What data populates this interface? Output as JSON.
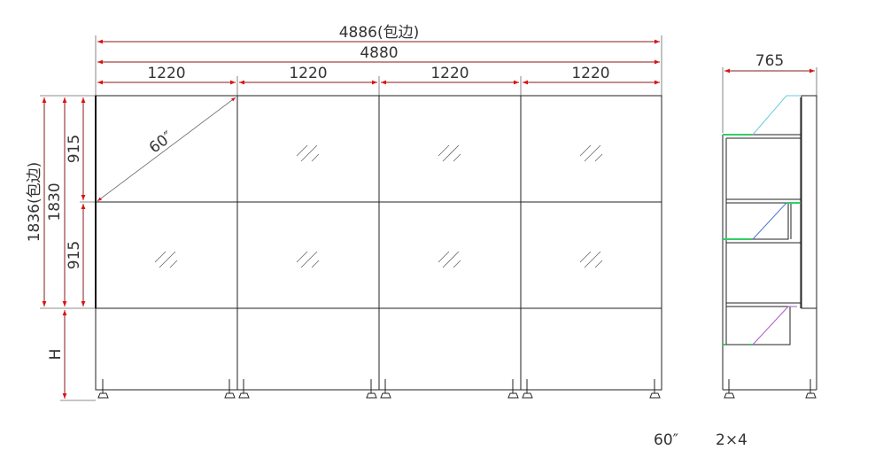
{
  "front_view": {
    "overall_width_with_bezel": "4886(包边)",
    "overall_width": "4880",
    "column_widths": [
      "1220",
      "1220",
      "1220",
      "1220"
    ],
    "overall_height_with_bezel": "1836(包边)",
    "overall_height": "1830",
    "row_heights": [
      "915",
      "915"
    ],
    "stand_height": "H",
    "diagonal": "60″",
    "rows": 2,
    "columns": 4
  },
  "side_view": {
    "depth": "765"
  },
  "caption": {
    "size": "60″",
    "layout": "2×4"
  },
  "colors": {
    "dimension": "#cc1111",
    "outline": "#222222",
    "bracket": "#33cc66"
  }
}
